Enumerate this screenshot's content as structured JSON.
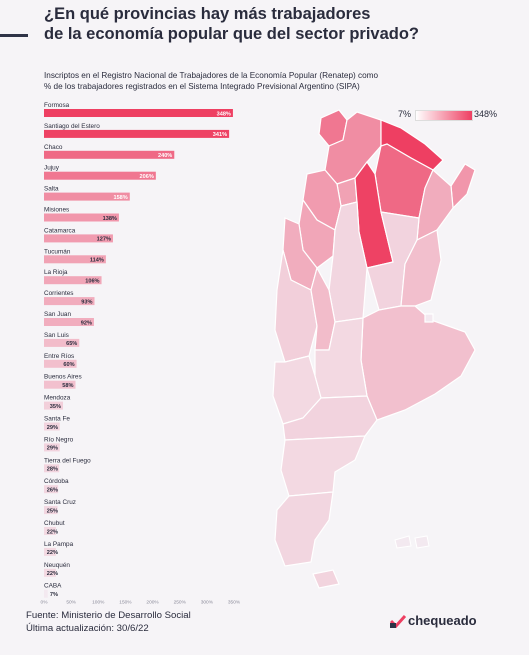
{
  "header": {
    "title_line1": "¿En qué provincias hay más trabajadores",
    "title_line2": "de la economía popular que del sector privado?",
    "subtitle_line1": "Inscriptos en el Registro Nacional de Trabajadores de la Economía Popular (Renatep) como",
    "subtitle_line2": "% de los trabajadores registrados en el Sistema Integrado Previsional Argentino (SIPA)"
  },
  "legend": {
    "min_label": "7%",
    "max_label": "348%"
  },
  "colors": {
    "bar_max": "#ee3f62",
    "bar_min": "#f3e9f0",
    "map_border": "#ffffff",
    "accent": "#2f3347"
  },
  "chart_data": {
    "type": "bar",
    "orientation": "horizontal",
    "categories": [
      "Formosa",
      "Santiago del Estero",
      "Chaco",
      "Jujuy",
      "Salta",
      "Misiones",
      "Catamarca",
      "Tucumán",
      "La Rioja",
      "Corrientes",
      "San Juan",
      "San Luis",
      "Entre Ríos",
      "Buenos Aires",
      "Mendoza",
      "Santa Fe",
      "Río Negro",
      "Tierra del Fuego",
      "Córdoba",
      "Santa Cruz",
      "Chubut",
      "La Pampa",
      "Neuquén",
      "CABA"
    ],
    "values": [
      348,
      341,
      240,
      206,
      158,
      138,
      127,
      114,
      106,
      93,
      92,
      65,
      60,
      58,
      35,
      29,
      29,
      28,
      26,
      25,
      22,
      22,
      22,
      7
    ],
    "value_labels": [
      "348%",
      "341%",
      "240%",
      "206%",
      "158%",
      "138%",
      "127%",
      "114%",
      "106%",
      "93%",
      "92%",
      "65%",
      "60%",
      "58%",
      "35%",
      "29%",
      "29%",
      "28%",
      "26%",
      "25%",
      "22%",
      "22%",
      "22%",
      "7%"
    ],
    "x_ticks": [
      "0%",
      "50%",
      "100%",
      "150%",
      "200%",
      "250%",
      "300%",
      "350%"
    ],
    "xlim": [
      0,
      350
    ]
  },
  "map_data": {
    "type": "choropleth",
    "values": {
      "Jujuy": 206,
      "Salta": 158,
      "Formosa": 348,
      "Chaco": 240,
      "Misiones": 138,
      "Tucumán": 114,
      "Santiago del Estero": 341,
      "Catamarca": 127,
      "Corrientes": 93,
      "La Rioja": 106,
      "San Juan": 92,
      "Córdoba": 26,
      "Santa Fe": 29,
      "Entre Ríos": 60,
      "Mendoza": 35,
      "San Luis": 65,
      "Buenos Aires": 58,
      "CABA": 7,
      "La Pampa": 22,
      "Neuquén": 22,
      "Río Negro": 29,
      "Chubut": 22,
      "Santa Cruz": 25,
      "Tierra del Fuego": 28
    }
  },
  "footer": {
    "source": "Fuente: Ministerio de Desarrollo Social",
    "updated": "Última actualización: 30/6/22",
    "brand": "chequeado"
  }
}
